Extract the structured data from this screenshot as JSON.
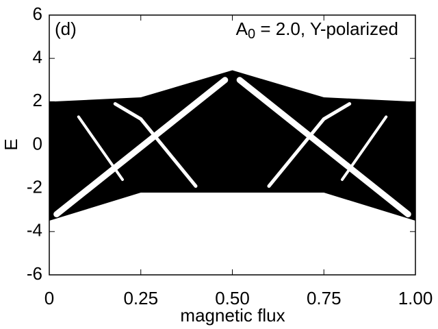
{
  "chart_data": {
    "type": "line",
    "annotation": "(d)",
    "title": {
      "base": "A",
      "subscript": "0",
      "rest": " = 2.0, Y-polarized"
    },
    "xlabel": "magnetic flux",
    "ylabel": "E",
    "xlim": [
      0,
      1
    ],
    "ylim": [
      -6,
      6
    ],
    "xticks": [
      0,
      0.25,
      {
        "value": 0.5,
        "label": "0.50"
      },
      0.75,
      {
        "value": 1,
        "label": "1.00"
      }
    ],
    "yticks": [
      -6,
      -4,
      -2,
      0,
      2,
      4,
      6
    ],
    "series": [
      {
        "color": "#000000",
        "x": [
          0,
          0.25,
          0.5,
          0.75,
          1
        ],
        "values": [
          2,
          2.2,
          3.45,
          2.2,
          2
        ],
        "low": [
          -3.5,
          -2.2,
          -2.2,
          -2.2,
          -3.5
        ]
      },
      {
        "color": "#ffffff",
        "line_width": 9,
        "x": [
          0.02,
          0.48
        ],
        "values": [
          -3.2,
          3.0
        ]
      },
      {
        "color": "#ffffff",
        "line_width": 9,
        "x": [
          0.52,
          0.98
        ],
        "values": [
          3.0,
          -3.2
        ]
      },
      {
        "color": "#ffffff",
        "line_width": 5,
        "x": [
          0.18,
          0.25,
          0.4
        ],
        "values": [
          1.9,
          1.2,
          -1.9
        ]
      },
      {
        "color": "#ffffff",
        "line_width": 5,
        "x": [
          0.6,
          0.75,
          0.82
        ],
        "values": [
          -1.9,
          1.2,
          1.9
        ]
      },
      {
        "color": "#ffffff",
        "line_width": 4,
        "x": [
          0.08,
          0.2
        ],
        "values": [
          1.3,
          -1.6
        ]
      },
      {
        "color": "#ffffff",
        "line_width": 4,
        "x": [
          0.8,
          0.92
        ],
        "values": [
          -1.6,
          1.3
        ]
      }
    ]
  }
}
